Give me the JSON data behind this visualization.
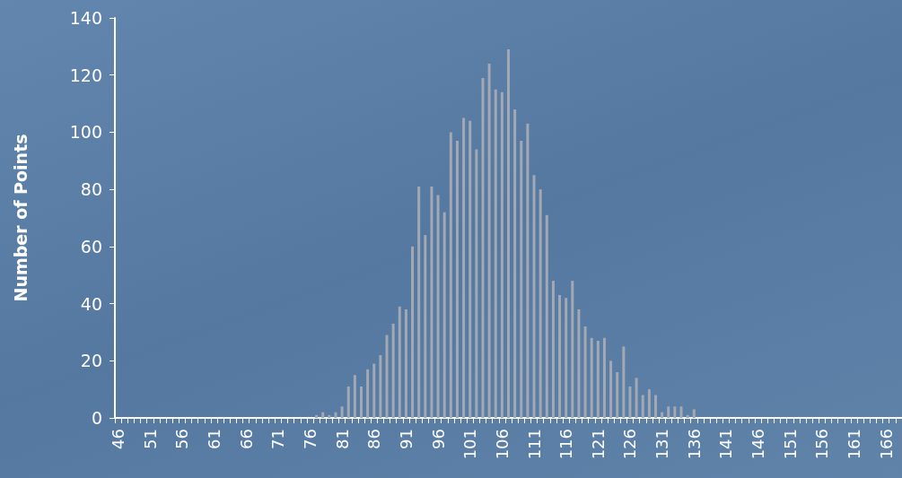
{
  "chart_data": {
    "type": "bar",
    "ylabel": "Number of Points",
    "categories": [
      "46",
      null,
      null,
      null,
      null,
      "51",
      null,
      null,
      null,
      null,
      "56",
      null,
      null,
      null,
      null,
      "61",
      null,
      null,
      null,
      null,
      "66",
      null,
      null,
      null,
      null,
      "71",
      null,
      null,
      null,
      null,
      "76",
      null,
      null,
      null,
      null,
      "81",
      null,
      null,
      null,
      null,
      "86",
      null,
      null,
      null,
      null,
      "91",
      null,
      null,
      null,
      null,
      "96",
      null,
      null,
      null,
      null,
      "101",
      null,
      null,
      null,
      null,
      "106",
      null,
      null,
      null,
      null,
      "111",
      null,
      null,
      null,
      null,
      "116",
      null,
      null,
      null,
      null,
      "121",
      null,
      null,
      null,
      null,
      "126",
      null,
      null,
      null,
      null,
      "131",
      null,
      null,
      null,
      null,
      "136",
      null,
      null,
      null,
      null,
      "141",
      null,
      null,
      null,
      null,
      "146",
      null,
      null,
      null,
      null,
      "151",
      null,
      null,
      null,
      null,
      "156",
      null,
      null,
      null,
      null,
      "161",
      null,
      null,
      null,
      null,
      "166",
      null,
      null
    ],
    "values": [
      0,
      0,
      0,
      0,
      0,
      0,
      0,
      0,
      0,
      0,
      0,
      0,
      0,
      0,
      0,
      0,
      0,
      0,
      0,
      0,
      0,
      0,
      0,
      0,
      0,
      0,
      0,
      0,
      0,
      0,
      0,
      1,
      2,
      1,
      2,
      4,
      11,
      15,
      11,
      17,
      19,
      22,
      29,
      33,
      39,
      38,
      60,
      81,
      64,
      81,
      78,
      72,
      100,
      97,
      105,
      104,
      94,
      119,
      124,
      115,
      114,
      129,
      108,
      97,
      103,
      85,
      80,
      71,
      48,
      43,
      42,
      48,
      38,
      32,
      28,
      27,
      28,
      20,
      16,
      25,
      11,
      14,
      8,
      10,
      8,
      2,
      4,
      4,
      4,
      1,
      3,
      0,
      0,
      0,
      0,
      0,
      0,
      0,
      0,
      0,
      0,
      0,
      0,
      0,
      0,
      0,
      0,
      0,
      0,
      0,
      0,
      0,
      0,
      0,
      0,
      0,
      0,
      0,
      0,
      0,
      0,
      0,
      0
    ],
    "color": "#a3a9b4",
    "ylim": [
      0,
      140
    ],
    "yticks": [
      0,
      20,
      40,
      60,
      80,
      100,
      120,
      140
    ],
    "grid": false
  }
}
